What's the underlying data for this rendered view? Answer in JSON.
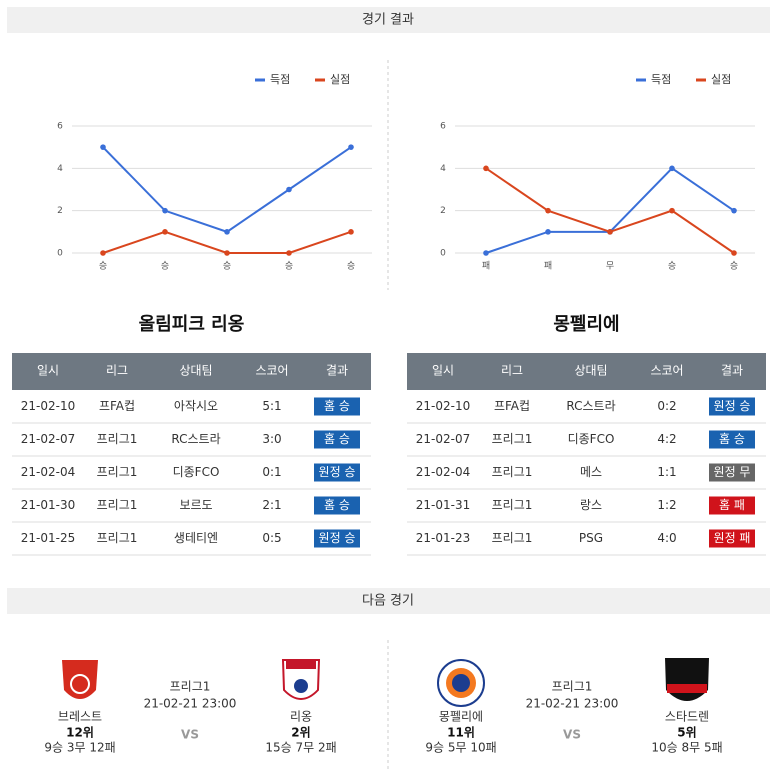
{
  "header": {
    "title": "경기 결과"
  },
  "chart_data": [
    {
      "type": "line",
      "categories": [
        "승",
        "승",
        "승",
        "승",
        "승"
      ],
      "series": [
        {
          "name": "득점",
          "color": "#3a6fd8",
          "values": [
            5,
            2,
            1,
            3,
            5
          ]
        },
        {
          "name": "실점",
          "color": "#d9461e",
          "values": [
            0,
            1,
            0,
            0,
            1
          ]
        }
      ],
      "ylim": [
        0,
        6
      ],
      "yticks": [
        0,
        2,
        4,
        6
      ],
      "grid": true
    },
    {
      "type": "line",
      "categories": [
        "패",
        "패",
        "무",
        "승",
        "승"
      ],
      "series": [
        {
          "name": "득점",
          "color": "#3a6fd8",
          "values": [
            0,
            1,
            1,
            4,
            2
          ]
        },
        {
          "name": "실점",
          "color": "#d9461e",
          "values": [
            4,
            2,
            1,
            2,
            0
          ]
        }
      ],
      "ylim": [
        0,
        6
      ],
      "yticks": [
        0,
        2,
        4,
        6
      ],
      "grid": true
    }
  ],
  "teams": [
    {
      "name": "올림피크 리옹",
      "table": {
        "headers": [
          "일시",
          "리그",
          "상대팀",
          "스코어",
          "결과"
        ],
        "rows": [
          [
            "21-02-10",
            "프FA컵",
            "아작시오",
            "5:1",
            "홈 승"
          ],
          [
            "21-02-07",
            "프리그1",
            "RC스트라",
            "3:0",
            "홈 승"
          ],
          [
            "21-02-04",
            "프리그1",
            "디종FCO",
            "0:1",
            "원정 승"
          ],
          [
            "21-01-30",
            "프리그1",
            "보르도",
            "2:1",
            "홈 승"
          ],
          [
            "21-01-25",
            "프리그1",
            "생테티엔",
            "0:5",
            "원정 승"
          ]
        ],
        "result_colors": [
          "#1a62b0",
          "#1a62b0",
          "#1a62b0",
          "#1a62b0",
          "#1a62b0"
        ]
      }
    },
    {
      "name": "몽펠리에",
      "table": {
        "headers": [
          "일시",
          "리그",
          "상대팀",
          "스코어",
          "결과"
        ],
        "rows": [
          [
            "21-02-10",
            "프FA컵",
            "RC스트라",
            "0:2",
            "원정 승"
          ],
          [
            "21-02-07",
            "프리그1",
            "디종FCO",
            "4:2",
            "홈 승"
          ],
          [
            "21-02-04",
            "프리그1",
            "메스",
            "1:1",
            "원정 무"
          ],
          [
            "21-01-31",
            "프리그1",
            "랑스",
            "1:2",
            "홈 패"
          ],
          [
            "21-01-23",
            "프리그1",
            "PSG",
            "4:0",
            "원정 패"
          ]
        ],
        "result_colors": [
          "#1a62b0",
          "#1a62b0",
          "#666666",
          "#d0131b",
          "#d0131b"
        ]
      }
    }
  ],
  "next": {
    "title": "다음 경기",
    "matches": [
      {
        "league": "프리그1",
        "time": "21-02-21 23:00",
        "vs": "VS",
        "home": {
          "name": "브레스트",
          "rank": "12위",
          "record": "9승 3무 12패"
        },
        "away": {
          "name": "리옹",
          "rank": "2위",
          "record": "15승 7무 2패"
        }
      },
      {
        "league": "프리그1",
        "time": "21-02-21 23:00",
        "vs": "VS",
        "home": {
          "name": "몽펠리에",
          "rank": "11위",
          "record": "9승 5무 10패"
        },
        "away": {
          "name": "스타드렌",
          "rank": "5위",
          "record": "10승 8무 5패"
        }
      }
    ]
  }
}
